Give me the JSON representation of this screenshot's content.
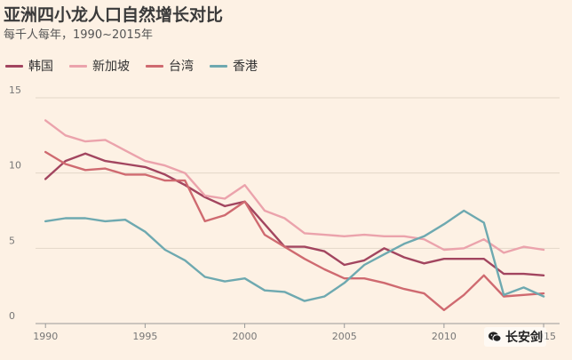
{
  "chart_data": {
    "type": "line",
    "title": "亚洲四小龙人口自然增长对比",
    "subtitle": "每千人每年，1990~2015年",
    "xlabel": "",
    "ylabel": "",
    "xlim": [
      1989.5,
      2015.8
    ],
    "ylim": [
      0,
      15
    ],
    "x_ticks": [
      1990,
      1995,
      2000,
      2005,
      2010,
      2015
    ],
    "y_ticks": [
      0,
      5,
      10,
      15
    ],
    "grid": true,
    "legend_position": "top-left",
    "x": [
      1990,
      1991,
      1992,
      1993,
      1994,
      1995,
      1996,
      1997,
      1998,
      1999,
      2000,
      2001,
      2002,
      2003,
      2004,
      2005,
      2006,
      2007,
      2008,
      2009,
      2010,
      2011,
      2012,
      2013,
      2014,
      2015
    ],
    "series": [
      {
        "name": "韩国",
        "color": "#a2455f",
        "values": [
          9.6,
          10.8,
          11.3,
          10.8,
          10.6,
          10.4,
          9.9,
          9.2,
          8.4,
          7.8,
          8.1,
          6.6,
          5.1,
          5.1,
          4.8,
          3.9,
          4.2,
          5.0,
          4.4,
          4.0,
          4.3,
          4.3,
          4.3,
          3.3,
          3.3,
          3.2
        ]
      },
      {
        "name": "新加坡",
        "color": "#eba3ac",
        "values": [
          13.5,
          12.5,
          12.1,
          12.2,
          11.5,
          10.8,
          10.5,
          10.0,
          8.5,
          8.3,
          9.2,
          7.5,
          7.0,
          6.0,
          5.9,
          5.8,
          5.9,
          5.8,
          5.8,
          5.6,
          4.9,
          5.0,
          5.6,
          4.7,
          5.1,
          4.9
        ]
      },
      {
        "name": "台湾",
        "color": "#cf6a70",
        "values": [
          11.4,
          10.6,
          10.2,
          10.3,
          9.9,
          9.9,
          9.5,
          9.5,
          6.8,
          7.2,
          8.1,
          5.9,
          5.1,
          4.3,
          3.6,
          3.0,
          3.0,
          2.7,
          2.3,
          2.0,
          0.9,
          1.9,
          3.2,
          1.8,
          1.9,
          2.0
        ]
      },
      {
        "name": "香港",
        "color": "#6ea9b0",
        "values": [
          6.8,
          7.0,
          7.0,
          6.8,
          6.9,
          6.1,
          4.9,
          4.2,
          3.1,
          2.8,
          3.0,
          2.2,
          2.1,
          1.5,
          1.8,
          2.7,
          3.9,
          4.6,
          5.3,
          5.8,
          6.6,
          7.5,
          6.7,
          1.9,
          2.4,
          1.8
        ]
      }
    ]
  },
  "watermark": {
    "text": "长安剑",
    "icon": "wechat-icon"
  }
}
